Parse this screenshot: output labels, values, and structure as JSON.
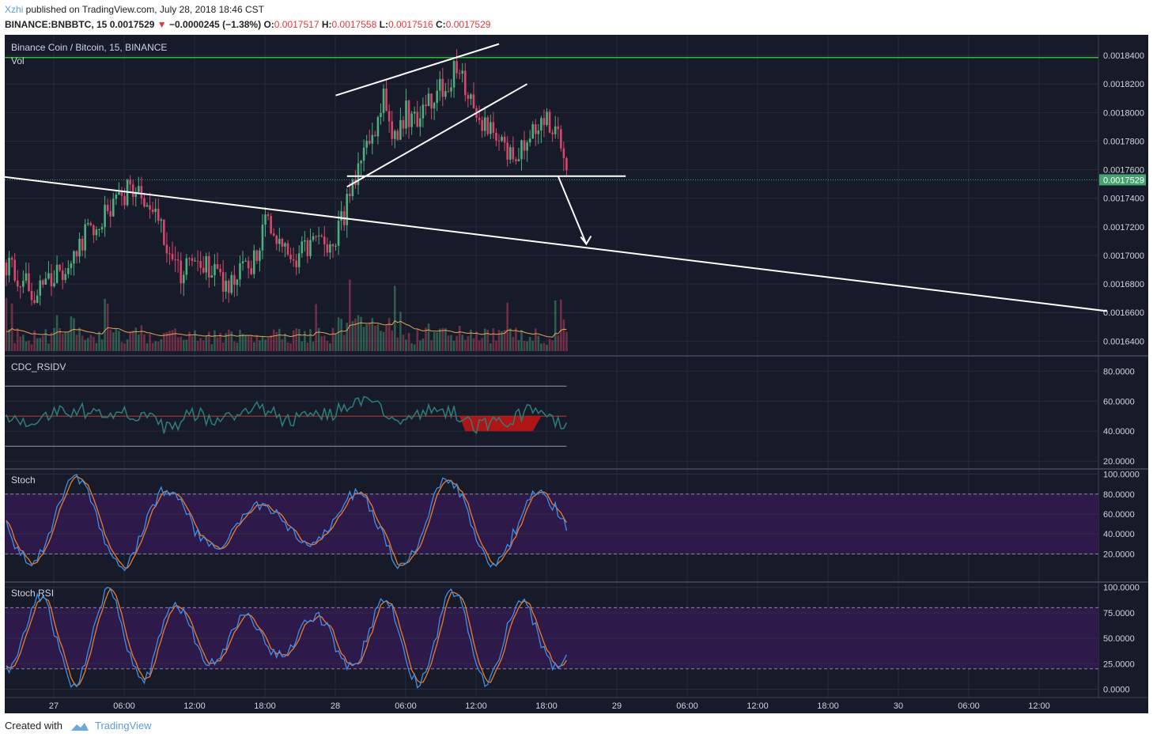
{
  "header": {
    "author": "Xzhi",
    "published": " published on TradingView.com, July 28, 2018 18:46 CST",
    "symbol": "BINANCE:BNBBTC, 15",
    "last": "0.0017529",
    "change": "−0.0000245 (−1.38%)",
    "o_label": "O:",
    "o_value": "0.0017517",
    "h_label": "H:",
    "h_value": "0.0017558",
    "l_label": "L:",
    "l_value": "0.0017516",
    "c_label": "C:",
    "c_value": "0.0017529"
  },
  "footer": {
    "created_with": "Created with",
    "brand": "TradingView"
  },
  "colors": {
    "background": "#171b29",
    "up": "#4caf7d",
    "down": "#d9466b",
    "rsi_line": "#2e7d7a",
    "stoch_k": "#3d8fe8",
    "stoch_d": "#f07a26",
    "purple_band": "#2e1a4a",
    "price_tag": "#45a36f",
    "top_line": "#3cb043"
  },
  "chart_data": [
    {
      "type": "candlestick",
      "title": "Binance Coin / Bitcoin, 15, BINANCE",
      "volume_label": "Vol",
      "last_price": 0.0017529,
      "last_price_label": "0.0017529",
      "y_ticks": [
        "0.0018400",
        "0.0018200",
        "0.0018000",
        "0.0017800",
        "0.0017600",
        "0.0017400",
        "0.0017200",
        "0.0017000",
        "0.0016800",
        "0.0016600",
        "0.0016400"
      ],
      "ylim": [
        0.001633,
        0.00185
      ],
      "x_ticks": [
        "27",
        "06:00",
        "12:00",
        "18:00",
        "28",
        "06:00",
        "12:00",
        "18:00",
        "29",
        "06:00",
        "12:00",
        "18:00",
        "30",
        "06:00",
        "12:00"
      ],
      "price_path": [
        {
          "i": 0,
          "p": 0.001695
        },
        {
          "i": 10,
          "p": 0.001675
        },
        {
          "i": 18,
          "p": 0.001685
        },
        {
          "i": 26,
          "p": 0.00171
        },
        {
          "i": 34,
          "p": 0.001725
        },
        {
          "i": 40,
          "p": 0.00174
        },
        {
          "i": 44,
          "p": 0.001748
        },
        {
          "i": 48,
          "p": 0.001738
        },
        {
          "i": 54,
          "p": 0.00173
        },
        {
          "i": 58,
          "p": 0.001695
        },
        {
          "i": 62,
          "p": 0.001685
        },
        {
          "i": 66,
          "p": 0.0017
        },
        {
          "i": 72,
          "p": 0.00169
        },
        {
          "i": 78,
          "p": 0.00168
        },
        {
          "i": 84,
          "p": 0.00169
        },
        {
          "i": 88,
          "p": 0.001695
        },
        {
          "i": 92,
          "p": 0.00172
        },
        {
          "i": 96,
          "p": 0.001715
        },
        {
          "i": 100,
          "p": 0.001695
        },
        {
          "i": 104,
          "p": 0.0017
        },
        {
          "i": 108,
          "p": 0.001705
        },
        {
          "i": 112,
          "p": 0.00171
        },
        {
          "i": 116,
          "p": 0.00171
        },
        {
          "i": 120,
          "p": 0.00173
        },
        {
          "i": 124,
          "p": 0.00175
        },
        {
          "i": 128,
          "p": 0.001775
        },
        {
          "i": 132,
          "p": 0.001795
        },
        {
          "i": 134,
          "p": 0.00181
        },
        {
          "i": 138,
          "p": 0.00178
        },
        {
          "i": 142,
          "p": 0.0018
        },
        {
          "i": 146,
          "p": 0.00179
        },
        {
          "i": 150,
          "p": 0.001805
        },
        {
          "i": 154,
          "p": 0.001815
        },
        {
          "i": 158,
          "p": 0.001825
        },
        {
          "i": 161,
          "p": 0.001835
        },
        {
          "i": 164,
          "p": 0.00181
        },
        {
          "i": 168,
          "p": 0.001795
        },
        {
          "i": 172,
          "p": 0.001785
        },
        {
          "i": 176,
          "p": 0.001775
        },
        {
          "i": 180,
          "p": 0.00177
        },
        {
          "i": 184,
          "p": 0.00178
        },
        {
          "i": 188,
          "p": 0.00179
        },
        {
          "i": 192,
          "p": 0.001795
        },
        {
          "i": 196,
          "p": 0.001785
        },
        {
          "i": 199,
          "p": 0.0017529
        }
      ],
      "overlay_lines": [
        {
          "from": [
            -1,
            0.001755
          ],
          "to": [
            391,
            0.001661
          ]
        },
        {
          "from": [
            117,
            0.001812
          ],
          "to": [
            175,
            0.001848
          ]
        },
        {
          "from": [
            121,
            0.001748
          ],
          "to": [
            185,
            0.00182
          ]
        },
        {
          "from": [
            121,
            0.0017555
          ],
          "to": [
            220,
            0.0017555
          ]
        },
        {
          "from": [
            196,
            0.0017555
          ],
          "to": [
            206,
            0.001708
          ]
        }
      ],
      "top_line": 0.0018385
    },
    {
      "type": "line",
      "title": "CDC_RSIDV",
      "y_ticks": [
        "80.0000",
        "60.0000",
        "40.0000",
        "20.0000"
      ],
      "ylim": [
        18,
        87
      ],
      "levels": [
        70,
        50,
        30
      ]
    },
    {
      "type": "line",
      "title": "Stoch",
      "y_ticks": [
        "100.0000",
        "80.0000",
        "60.0000",
        "40.0000",
        "20.0000"
      ],
      "ylim": [
        -5,
        102
      ],
      "band": [
        20,
        80
      ]
    },
    {
      "type": "line",
      "title": "Stoch RSI",
      "y_ticks": [
        "100.0000",
        "75.0000",
        "50.0000",
        "25.0000",
        "0.0000"
      ],
      "ylim": [
        -5,
        102
      ],
      "band": [
        20,
        80
      ]
    }
  ]
}
